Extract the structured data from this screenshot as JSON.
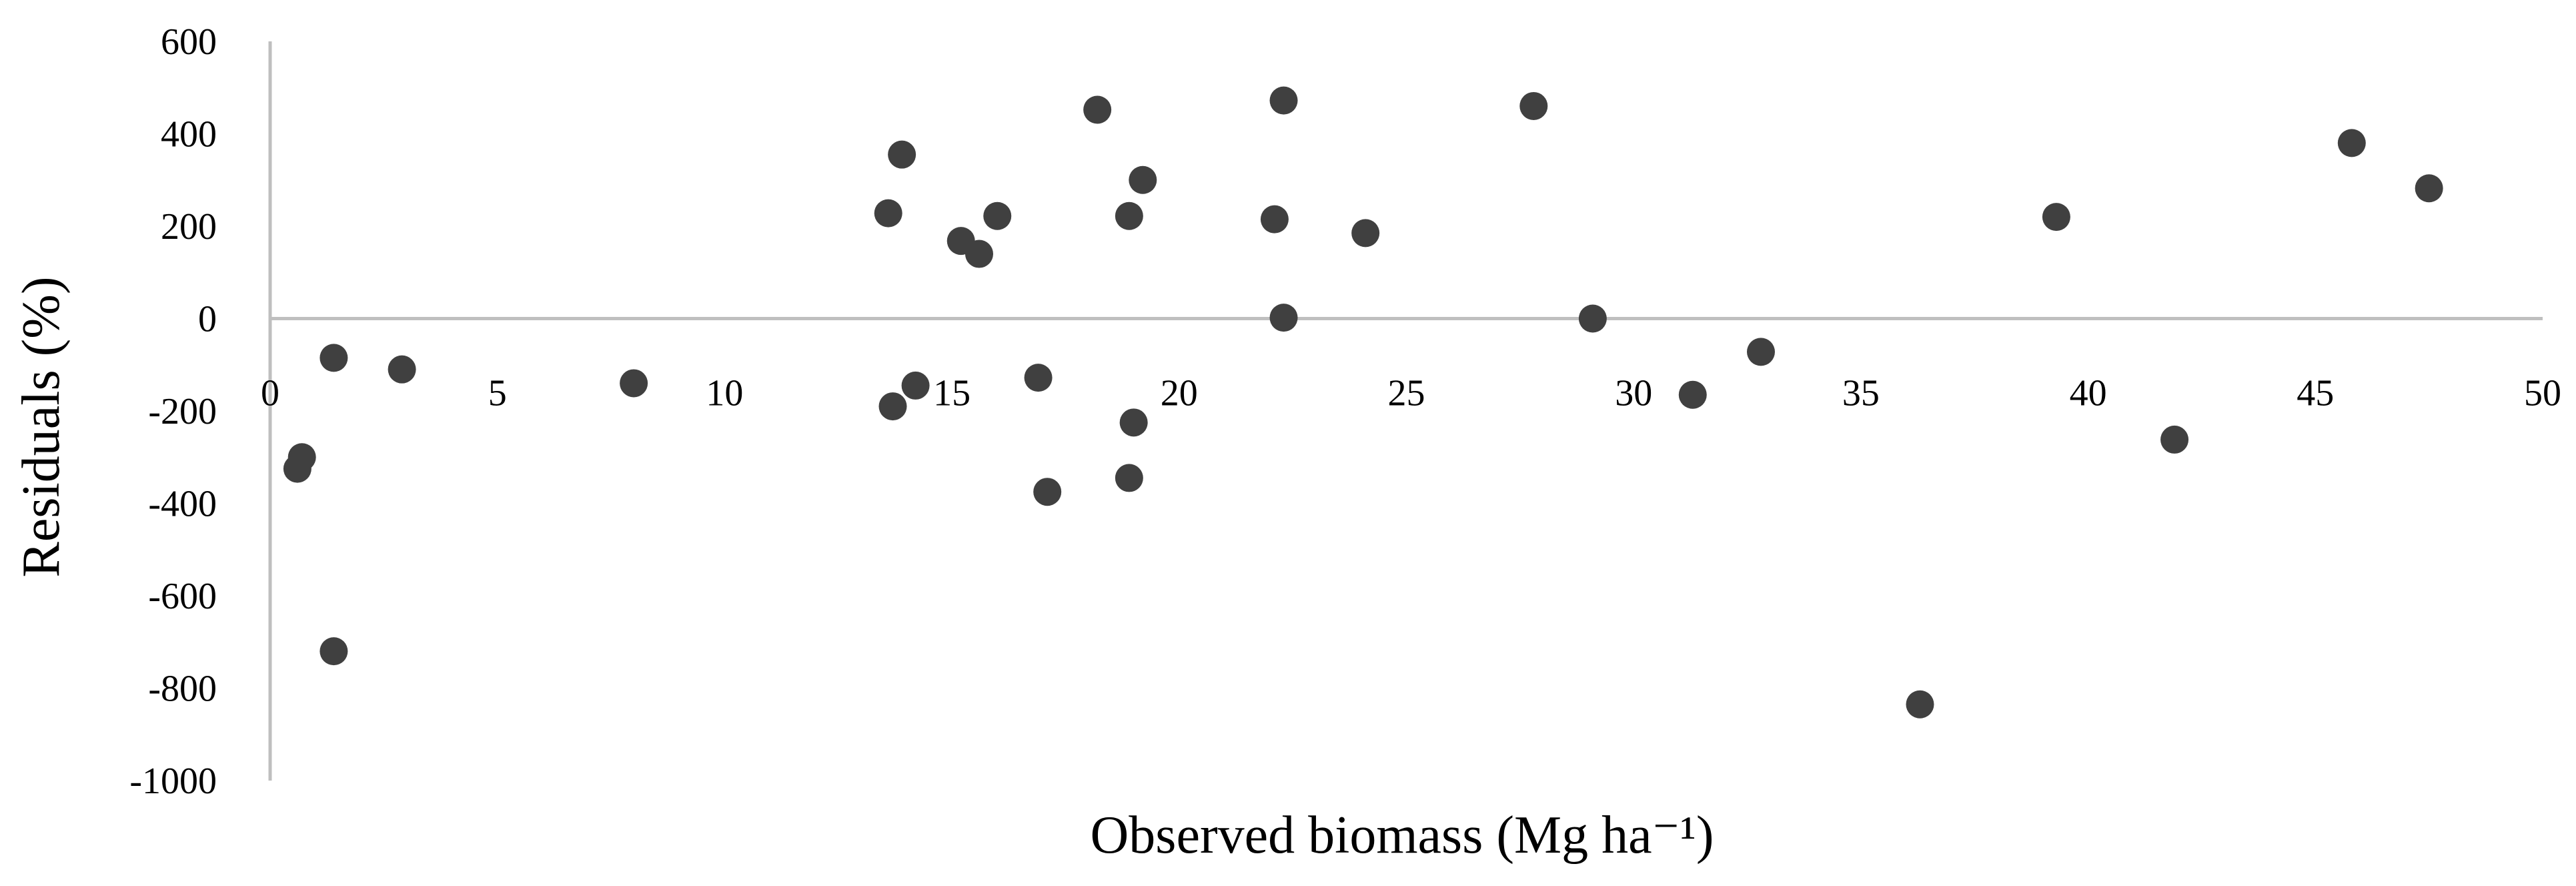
{
  "chart_data": {
    "type": "scatter",
    "title": "",
    "xlabel": "Observed biomass (Mg ha⁻¹)",
    "ylabel": "Residuals (%)",
    "xlim": [
      0,
      50
    ],
    "ylim": [
      -1000,
      600
    ],
    "x_ticks": [
      0,
      5,
      10,
      15,
      20,
      25,
      30,
      35,
      40,
      45,
      50
    ],
    "y_ticks": [
      600,
      400,
      200,
      0,
      -200,
      -400,
      -600,
      -800,
      -1000
    ],
    "grid": false,
    "legend": "none",
    "marker_color": "#404040",
    "axis_color": "#bfbfbf",
    "series": [
      {
        "points": [
          {
            "x": 0.6,
            "y": -325
          },
          {
            "x": 0.7,
            "y": -300
          },
          {
            "x": 1.4,
            "y": -85
          },
          {
            "x": 1.4,
            "y": -720
          },
          {
            "x": 2.9,
            "y": -110
          },
          {
            "x": 8.0,
            "y": -140
          },
          {
            "x": 13.6,
            "y": 228
          },
          {
            "x": 13.7,
            "y": -190
          },
          {
            "x": 13.9,
            "y": 355
          },
          {
            "x": 14.2,
            "y": -145
          },
          {
            "x": 15.2,
            "y": 168
          },
          {
            "x": 15.6,
            "y": 140
          },
          {
            "x": 16.0,
            "y": 222
          },
          {
            "x": 16.9,
            "y": -128
          },
          {
            "x": 17.1,
            "y": -375
          },
          {
            "x": 18.2,
            "y": 452
          },
          {
            "x": 18.9,
            "y": 222
          },
          {
            "x": 18.9,
            "y": -345
          },
          {
            "x": 19.0,
            "y": -225
          },
          {
            "x": 19.2,
            "y": 300
          },
          {
            "x": 22.1,
            "y": 215
          },
          {
            "x": 22.3,
            "y": 472
          },
          {
            "x": 22.3,
            "y": 2
          },
          {
            "x": 24.1,
            "y": 185
          },
          {
            "x": 27.8,
            "y": 460
          },
          {
            "x": 29.1,
            "y": 0
          },
          {
            "x": 31.3,
            "y": -165
          },
          {
            "x": 32.8,
            "y": -72
          },
          {
            "x": 36.3,
            "y": -835
          },
          {
            "x": 39.3,
            "y": 220
          },
          {
            "x": 41.9,
            "y": -262
          },
          {
            "x": 45.8,
            "y": 380
          },
          {
            "x": 47.5,
            "y": 282
          }
        ]
      }
    ]
  }
}
